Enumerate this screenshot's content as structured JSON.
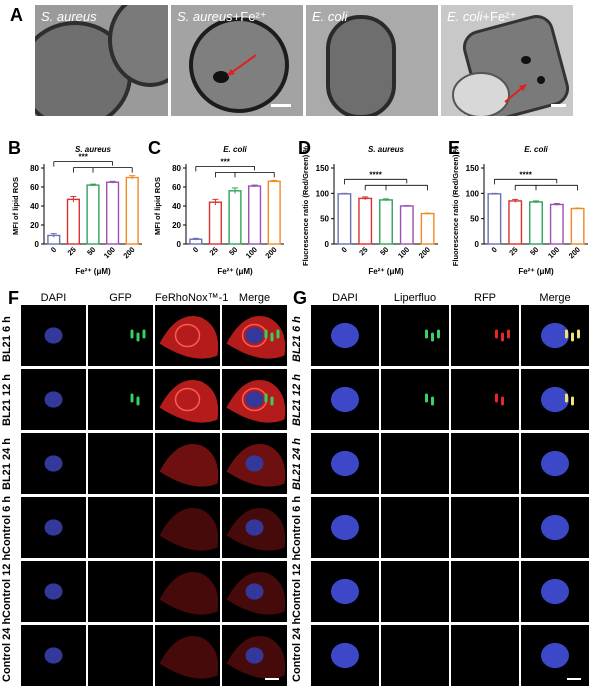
{
  "panel_A": {
    "letter": "A",
    "images": [
      {
        "title_italic": "S. aureus",
        "title_suffix": ""
      },
      {
        "title_italic": "S. aureus",
        "title_suffix": "+Fe²⁺"
      },
      {
        "title_italic": "E. coli",
        "title_suffix": ""
      },
      {
        "title_italic": "E. coli",
        "title_suffix": "+Fe²⁺"
      }
    ]
  },
  "chart_data": [
    {
      "panel": "B",
      "type": "bar",
      "title": "S. aureus",
      "ylabel": "MFI of lipid ROS",
      "xlabel": "Fe²⁺ (μM)",
      "categories": [
        "0",
        "25",
        "50",
        "100",
        "200"
      ],
      "values": [
        9,
        47,
        62,
        65,
        70
      ],
      "errors": [
        2,
        3,
        1,
        1,
        2
      ],
      "ylim": [
        0,
        80
      ],
      "yticks": [
        "0",
        "20",
        "40",
        "60",
        "80"
      ],
      "significance": "***",
      "colors": [
        "#6a72b3",
        "#d9312f",
        "#2ea35a",
        "#9c4fb5",
        "#f08a24"
      ]
    },
    {
      "panel": "C",
      "type": "bar",
      "title": "E. coli",
      "ylabel": "MFI of lipid ROS",
      "xlabel": "Fe²⁺ (μM)",
      "categories": [
        "0",
        "25",
        "50",
        "100",
        "200"
      ],
      "values": [
        5,
        44,
        56,
        61,
        66
      ],
      "errors": [
        1,
        3,
        3,
        1,
        1
      ],
      "ylim": [
        0,
        80
      ],
      "yticks": [
        "0",
        "20",
        "40",
        "60",
        "80"
      ],
      "significance": "***",
      "colors": [
        "#6a72b3",
        "#d9312f",
        "#2ea35a",
        "#9c4fb5",
        "#f08a24"
      ]
    },
    {
      "panel": "D",
      "type": "bar",
      "title": "S. aureus",
      "ylabel": "Flucrescence ratio (Red/Green) %",
      "xlabel": "Fe²⁺ (μM)",
      "categories": [
        "0",
        "25",
        "50",
        "100",
        "200"
      ],
      "values": [
        99,
        90,
        87,
        75,
        60
      ],
      "errors": [
        1,
        3,
        2,
        1,
        1
      ],
      "ylim": [
        0,
        150
      ],
      "yticks": [
        "0",
        "50",
        "100",
        "150"
      ],
      "significance": "****",
      "colors": [
        "#6a72b3",
        "#d9312f",
        "#2ea35a",
        "#9c4fb5",
        "#f08a24"
      ]
    },
    {
      "panel": "E",
      "type": "bar",
      "title": "E. coli",
      "ylabel": "Fluorescence ratio (Red/Green) %",
      "xlabel": "Fe²⁺ (μM)",
      "categories": [
        "0",
        "25",
        "50",
        "100",
        "200"
      ],
      "values": [
        99,
        85,
        83,
        78,
        70
      ],
      "errors": [
        1,
        3,
        2,
        2,
        1
      ],
      "ylim": [
        0,
        150
      ],
      "yticks": [
        "0",
        "50",
        "100",
        "150"
      ],
      "significance": "****",
      "colors": [
        "#6a72b3",
        "#d9312f",
        "#2ea35a",
        "#9c4fb5",
        "#f08a24"
      ]
    }
  ],
  "panel_F": {
    "letter": "F",
    "columns": [
      "DAPI",
      "GFP",
      "FeRhoNox™-1",
      "Merge"
    ],
    "rows": [
      "BL21 6 h",
      "BL21 12 h",
      "BL21 24 h",
      "Control 6 h",
      "Control 12 h",
      "Control 24 h"
    ]
  },
  "panel_G": {
    "letter": "G",
    "columns": [
      "DAPI",
      "Liperfluo",
      "RFP",
      "Merge"
    ],
    "rows": [
      "BL21 6 h",
      "BL21 12 h",
      "BL21 24 h",
      "Control 6 h",
      "Control 12 h",
      "Control 24 h"
    ]
  }
}
